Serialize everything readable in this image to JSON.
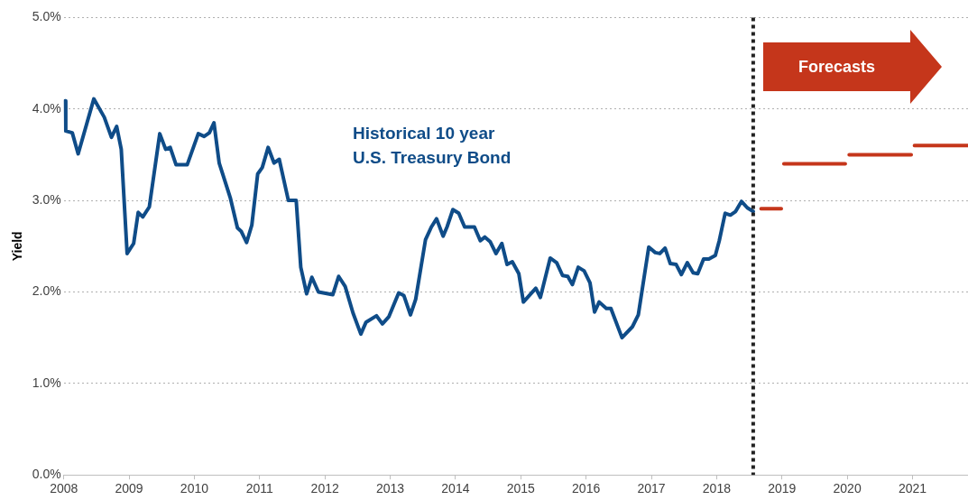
{
  "chart_data": {
    "type": "line",
    "ylabel": "Yield",
    "xlim": [
      2008,
      2021.85
    ],
    "xticks": [
      2008,
      2009,
      2010,
      2011,
      2012,
      2013,
      2014,
      2015,
      2016,
      2017,
      2018,
      2019,
      2020,
      2021
    ],
    "ylim": [
      0,
      5
    ],
    "yticks": [
      {
        "value": 0,
        "label": "0.0%"
      },
      {
        "value": 1,
        "label": "1.0%"
      },
      {
        "value": 2,
        "label": "2.0%"
      },
      {
        "value": 3,
        "label": "3.0%"
      },
      {
        "value": 4,
        "label": "4.0%"
      },
      {
        "value": 5,
        "label": "5.0%"
      }
    ],
    "grid": "y",
    "line_style": "solid",
    "series": [
      {
        "color": "#0f4c88",
        "x": [
          2008.02,
          2008.03,
          2008.13,
          2008.22,
          2008.46,
          2008.62,
          2008.73,
          2008.81,
          2008.88,
          2008.97,
          2009.07,
          2009.14,
          2009.21,
          2009.31,
          2009.47,
          2009.56,
          2009.63,
          2009.72,
          2009.89,
          2010.06,
          2010.15,
          2010.23,
          2010.3,
          2010.38,
          2010.55,
          2010.66,
          2010.72,
          2010.8,
          2010.88,
          2010.97,
          2011.04,
          2011.13,
          2011.22,
          2011.3,
          2011.44,
          2011.56,
          2011.63,
          2011.72,
          2011.8,
          2011.9,
          2012.12,
          2012.21,
          2012.31,
          2012.43,
          2012.55,
          2012.63,
          2012.79,
          2012.88,
          2012.98,
          2013.13,
          2013.21,
          2013.31,
          2013.39,
          2013.54,
          2013.63,
          2013.71,
          2013.81,
          2013.87,
          2013.96,
          2014.05,
          2014.14,
          2014.29,
          2014.38,
          2014.45,
          2014.53,
          2014.62,
          2014.71,
          2014.79,
          2014.87,
          2014.97,
          2015.04,
          2015.23,
          2015.3,
          2015.45,
          2015.55,
          2015.64,
          2015.72,
          2015.79,
          2015.88,
          2015.97,
          2016.06,
          2016.13,
          2016.2,
          2016.31,
          2016.38,
          2016.55,
          2016.71,
          2016.8,
          2016.96,
          2017.06,
          2017.13,
          2017.21,
          2017.29,
          2017.38,
          2017.46,
          2017.55,
          2017.64,
          2017.71,
          2017.8,
          2017.88,
          2017.98,
          2018.04,
          2018.13,
          2018.21,
          2018.29,
          2018.38,
          2018.47,
          2018.56
        ],
        "values": [
          4.09,
          3.76,
          3.74,
          3.51,
          4.11,
          3.91,
          3.69,
          3.81,
          3.56,
          2.42,
          2.53,
          2.87,
          2.82,
          2.93,
          3.73,
          3.56,
          3.58,
          3.39,
          3.39,
          3.73,
          3.7,
          3.74,
          3.85,
          3.41,
          3.03,
          2.7,
          2.66,
          2.54,
          2.73,
          3.29,
          3.36,
          3.58,
          3.41,
          3.45,
          3.0,
          3.0,
          2.27,
          1.98,
          2.16,
          2.0,
          1.97,
          2.17,
          2.06,
          1.77,
          1.54,
          1.67,
          1.74,
          1.65,
          1.73,
          1.99,
          1.96,
          1.75,
          1.92,
          2.57,
          2.71,
          2.8,
          2.61,
          2.71,
          2.9,
          2.86,
          2.71,
          2.71,
          2.56,
          2.6,
          2.55,
          2.42,
          2.53,
          2.3,
          2.33,
          2.2,
          1.89,
          2.04,
          1.94,
          2.37,
          2.32,
          2.18,
          2.17,
          2.08,
          2.27,
          2.23,
          2.1,
          1.78,
          1.89,
          1.82,
          1.82,
          1.5,
          1.62,
          1.75,
          2.49,
          2.43,
          2.42,
          2.48,
          2.31,
          2.3,
          2.19,
          2.32,
          2.21,
          2.2,
          2.36,
          2.36,
          2.4,
          2.56,
          2.86,
          2.84,
          2.88,
          2.99,
          2.92,
          2.88
        ]
      },
      {
        "color": "#c5361b",
        "x": [
          2018.68,
          2018.99,
          2019.01,
          2019.03,
          2019.97,
          2020.0,
          2020.03,
          2020.98,
          2021.0,
          2021.03,
          2021.85
        ],
        "values": [
          2.91,
          2.91,
          null,
          3.4,
          3.4,
          null,
          3.5,
          3.5,
          null,
          3.6,
          3.6
        ]
      }
    ],
    "ref_lines": [
      {
        "axis": "x",
        "value": 2018.56,
        "color": "#222222",
        "line_style": "dotted"
      }
    ],
    "annotations": [
      "Historical 10 year\nU.S. Treasury Bond",
      "Forecasts"
    ]
  }
}
